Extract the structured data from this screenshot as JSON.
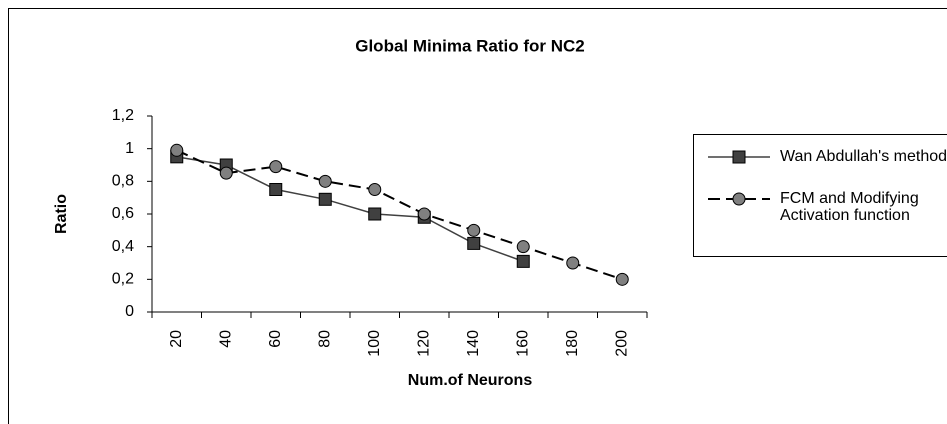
{
  "chart_data": {
    "type": "line",
    "title": "Global Minima Ratio for NC2",
    "xlabel": "Num.of Neurons",
    "ylabel": "Ratio",
    "categories": [
      "20",
      "40",
      "60",
      "80",
      "100",
      "120",
      "140",
      "160",
      "180",
      "200"
    ],
    "series": [
      {
        "name": "Wan Abdullah's method",
        "color": "#404040",
        "marker": "square",
        "dash": false,
        "values": [
          0.95,
          0.9,
          0.75,
          0.69,
          0.6,
          0.58,
          0.42,
          0.31,
          null,
          null
        ]
      },
      {
        "name": "FCM and Modifying Activation function",
        "color": "#000000",
        "marker": "circle",
        "dash": true,
        "values": [
          0.99,
          0.85,
          0.89,
          0.8,
          0.75,
          0.6,
          0.5,
          0.4,
          0.3,
          0.2
        ]
      }
    ],
    "ylim": [
      0,
      1.2
    ],
    "yticks": [
      0,
      {
        "value": 0.2,
        "label": "0,2"
      },
      {
        "value": 0.4,
        "label": "0,4"
      },
      {
        "value": 0.6,
        "label": "0,6"
      },
      {
        "value": 0.8,
        "label": "0,8"
      },
      1,
      {
        "value": 1.2,
        "label": "1,2"
      }
    ],
    "grid": false,
    "legend": "right"
  }
}
